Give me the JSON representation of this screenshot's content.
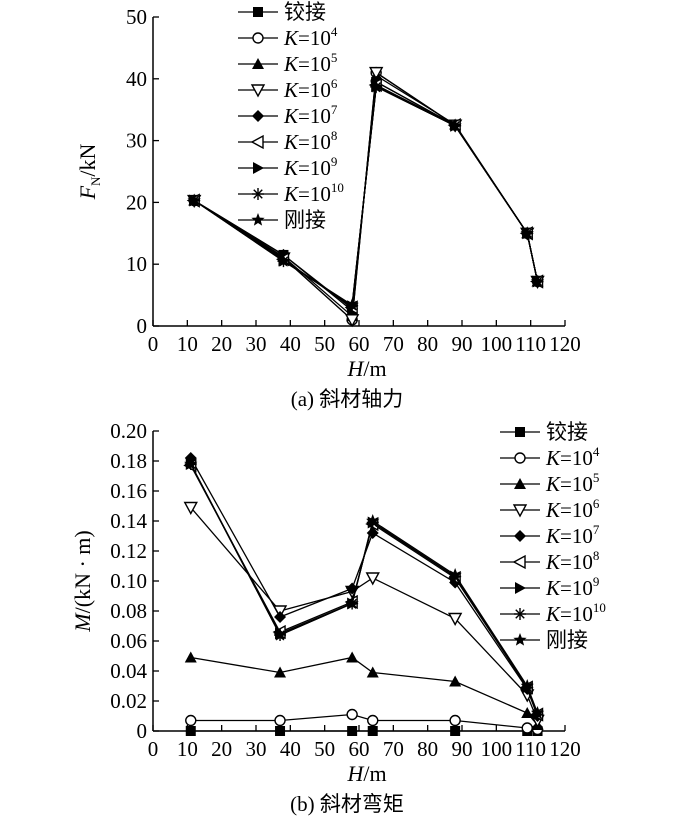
{
  "chart_data": [
    {
      "type": "line",
      "caption": "(a) 斜材轴力",
      "ylabel": {
        "main": "F",
        "sub": "N",
        "unit": "/kN"
      },
      "xlabel": {
        "main": "H",
        "unit": "/m"
      },
      "xlim": [
        0,
        120
      ],
      "ylim": [
        0,
        50
      ],
      "xticks": [
        0,
        10,
        20,
        30,
        40,
        50,
        60,
        70,
        80,
        90,
        100,
        110,
        120
      ],
      "yticks": [
        "0",
        "10",
        "20",
        "30",
        "40",
        "50"
      ],
      "x_tick_label_text": [
        "0",
        "10",
        "20",
        "30",
        "40",
        "50",
        "60",
        "70",
        "80",
        "90",
        "100",
        "110",
        "120"
      ],
      "legend": [
        {
          "main": "铰接",
          "marker": "filled-square"
        },
        {
          "main": "K",
          "eq": "=10",
          "exp": "4",
          "marker": "open-circle"
        },
        {
          "main": "K",
          "eq": "=10",
          "exp": "5",
          "marker": "filled-triangle-up"
        },
        {
          "main": "K",
          "eq": "=10",
          "exp": "6",
          "marker": "open-triangle-down"
        },
        {
          "main": "K",
          "eq": "=10",
          "exp": "7",
          "marker": "filled-diamond"
        },
        {
          "main": "K",
          "eq": "=10",
          "exp": "8",
          "marker": "open-triangle-left"
        },
        {
          "main": "K",
          "eq": "=10",
          "exp": "9",
          "marker": "filled-triangle-right"
        },
        {
          "main": "K",
          "eq": "=10",
          "exp": "10",
          "marker": "asterisk"
        },
        {
          "main": "刚接",
          "marker": "filled-star"
        }
      ],
      "series": [
        {
          "name": "铰接",
          "x": [
            12,
            38,
            58,
            65,
            88,
            109,
            112
          ],
          "y": [
            20.3,
            11.5,
            2.5,
            39.5,
            32.5,
            15.0,
            7.2
          ]
        },
        {
          "name": "K=10^4",
          "x": [
            12,
            38,
            58,
            65,
            88,
            109,
            112
          ],
          "y": [
            20.3,
            11.0,
            1.0,
            41.0,
            32.5,
            15.0,
            7.2
          ]
        },
        {
          "name": "K=10^5",
          "x": [
            12,
            38,
            58,
            65,
            88,
            109,
            112
          ],
          "y": [
            20.3,
            11.2,
            1.6,
            40.5,
            32.6,
            15.0,
            7.2
          ]
        },
        {
          "name": "K=10^6",
          "x": [
            12,
            38,
            58,
            65,
            88,
            109,
            112
          ],
          "y": [
            20.3,
            11.0,
            1.0,
            41.0,
            32.5,
            15.0,
            7.2
          ]
        },
        {
          "name": "K=10^7",
          "x": [
            12,
            38,
            58,
            65,
            88,
            109,
            112
          ],
          "y": [
            20.3,
            11.5,
            2.8,
            39.5,
            32.5,
            15.0,
            7.2
          ]
        },
        {
          "name": "K=10^8",
          "x": [
            12,
            38,
            58,
            65,
            88,
            109,
            112
          ],
          "y": [
            20.3,
            10.8,
            3.0,
            39.0,
            32.5,
            15.0,
            7.2
          ]
        },
        {
          "name": "K=10^9",
          "x": [
            12,
            38,
            58,
            65,
            88,
            109,
            112
          ],
          "y": [
            20.3,
            10.6,
            3.2,
            38.8,
            32.4,
            15.0,
            7.2
          ]
        },
        {
          "name": "K=10^10",
          "x": [
            12,
            38,
            58,
            65,
            88,
            109,
            112
          ],
          "y": [
            20.3,
            10.5,
            3.3,
            38.7,
            32.4,
            15.0,
            7.2
          ]
        },
        {
          "name": "刚接",
          "x": [
            12,
            38,
            58,
            65,
            88,
            109,
            112
          ],
          "y": [
            20.3,
            10.5,
            3.4,
            38.7,
            32.4,
            15.0,
            7.2
          ]
        }
      ]
    },
    {
      "type": "line",
      "caption": "(b) 斜材弯矩",
      "ylabel": {
        "main": "M",
        "unit": "/(kN · m)"
      },
      "xlabel": {
        "main": "H",
        "unit": "/m"
      },
      "xlim": [
        0,
        120
      ],
      "ylim": [
        0,
        0.2
      ],
      "xticks": [
        0,
        10,
        20,
        30,
        40,
        50,
        60,
        70,
        80,
        90,
        100,
        110,
        120
      ],
      "yticks": [
        "0",
        "0.02",
        "0.04",
        "0.06",
        "0.08",
        "0.10",
        "0.12",
        "0.14",
        "0.16",
        "0.18",
        "0.20"
      ],
      "x_tick_label_text": [
        "0",
        "10",
        "20",
        "30",
        "40",
        "50",
        "60",
        "70",
        "80",
        "90",
        "100",
        "110",
        "120"
      ],
      "legend": [
        {
          "main": "铰接",
          "marker": "filled-square"
        },
        {
          "main": "K",
          "eq": "=10",
          "exp": "4",
          "marker": "open-circle"
        },
        {
          "main": "K",
          "eq": "=10",
          "exp": "5",
          "marker": "filled-triangle-up"
        },
        {
          "main": "K",
          "eq": "=10",
          "exp": "6",
          "marker": "open-triangle-down"
        },
        {
          "main": "K",
          "eq": "=10",
          "exp": "7",
          "marker": "filled-diamond"
        },
        {
          "main": "K",
          "eq": "=10",
          "exp": "8",
          "marker": "open-triangle-left"
        },
        {
          "main": "K",
          "eq": "=10",
          "exp": "9",
          "marker": "filled-triangle-right"
        },
        {
          "main": "K",
          "eq": "=10",
          "exp": "10",
          "marker": "asterisk"
        },
        {
          "main": "刚接",
          "marker": "filled-star"
        }
      ],
      "series": [
        {
          "name": "铰接",
          "x": [
            11,
            37,
            58,
            64,
            88,
            109,
            112
          ],
          "y": [
            0.0,
            0.0,
            0.0,
            0.0,
            0.0,
            0.0,
            0.0
          ]
        },
        {
          "name": "K=10^4",
          "x": [
            11,
            37,
            58,
            64,
            88,
            109,
            112
          ],
          "y": [
            0.007,
            0.007,
            0.011,
            0.007,
            0.007,
            0.002,
            0.001
          ]
        },
        {
          "name": "K=10^5",
          "x": [
            11,
            37,
            58,
            64,
            88,
            109,
            112
          ],
          "y": [
            0.049,
            0.039,
            0.049,
            0.039,
            0.033,
            0.012,
            0.004
          ]
        },
        {
          "name": "K=10^6",
          "x": [
            11,
            37,
            58,
            64,
            88,
            109,
            112
          ],
          "y": [
            0.149,
            0.08,
            0.093,
            0.102,
            0.075,
            0.024,
            0.007
          ]
        },
        {
          "name": "K=10^7",
          "x": [
            11,
            37,
            58,
            64,
            88,
            109,
            112
          ],
          "y": [
            0.182,
            0.076,
            0.095,
            0.132,
            0.099,
            0.028,
            0.01
          ]
        },
        {
          "name": "K=10^8",
          "x": [
            11,
            37,
            58,
            64,
            88,
            109,
            112
          ],
          "y": [
            0.177,
            0.066,
            0.086,
            0.138,
            0.102,
            0.029,
            0.011
          ]
        },
        {
          "name": "K=10^9",
          "x": [
            11,
            37,
            58,
            64,
            88,
            109,
            112
          ],
          "y": [
            0.178,
            0.065,
            0.085,
            0.139,
            0.103,
            0.029,
            0.011
          ]
        },
        {
          "name": "K=10^10",
          "x": [
            11,
            37,
            58,
            64,
            88,
            109,
            112
          ],
          "y": [
            0.178,
            0.064,
            0.085,
            0.139,
            0.103,
            0.029,
            0.011
          ]
        },
        {
          "name": "刚接",
          "x": [
            11,
            37,
            58,
            64,
            88,
            109,
            112
          ],
          "y": [
            0.178,
            0.064,
            0.085,
            0.14,
            0.104,
            0.03,
            0.012
          ]
        }
      ]
    }
  ]
}
